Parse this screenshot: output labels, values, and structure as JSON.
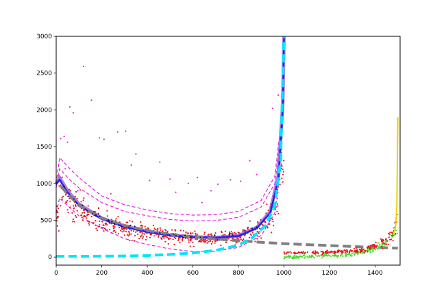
{
  "chart_data": {
    "type": "scatter",
    "title": "",
    "xlabel": "",
    "ylabel": "",
    "xlim": [
      0,
      1510
    ],
    "ylim": [
      -110,
      3000
    ],
    "grid": false,
    "x_ticks": [
      0,
      200,
      400,
      600,
      800,
      1000,
      1200,
      1400
    ],
    "y_ticks": [
      0,
      500,
      1000,
      1500,
      2000,
      2500,
      3000
    ],
    "colors": {
      "red_points": "#e41a1c",
      "magenta_points": "#e020e0",
      "magenta_band": "#e020e0",
      "fit_blue": "#2222ee",
      "fit_purple": "#9a60d8",
      "gray_trend": "#808080",
      "cyan_curve": "#00e5ff",
      "green_points": "#44dd22",
      "yellow_curve": "#f0d000",
      "dark_points": "#2a1060"
    },
    "series": [
      {
        "name": "",
        "kind": "scatter",
        "color_key": "red_points",
        "count": 600,
        "x_range": [
          0,
          1000
        ],
        "trend": [
          [
            2,
            420
          ],
          [
            15,
            950
          ],
          [
            50,
            760
          ],
          [
            100,
            620
          ],
          [
            200,
            460
          ],
          [
            300,
            380
          ],
          [
            400,
            330
          ],
          [
            500,
            290
          ],
          [
            600,
            265
          ],
          [
            700,
            250
          ],
          [
            800,
            275
          ],
          [
            900,
            400
          ],
          [
            960,
            620
          ],
          [
            990,
            1200
          ]
        ]
      },
      {
        "name": "",
        "kind": "scatter",
        "color_key": "magenta_points",
        "points": [
          [
            120,
            2590
          ],
          [
            155,
            2130
          ],
          [
            60,
            2040
          ],
          [
            75,
            1960
          ],
          [
            20,
            1610
          ],
          [
            35,
            1640
          ],
          [
            50,
            1560
          ],
          [
            190,
            1620
          ],
          [
            210,
            1600
          ],
          [
            270,
            1700
          ],
          [
            305,
            1710
          ],
          [
            330,
            1250
          ],
          [
            350,
            1400
          ],
          [
            410,
            1040
          ],
          [
            455,
            1290
          ],
          [
            500,
            1060
          ],
          [
            525,
            880
          ],
          [
            580,
            1000
          ],
          [
            620,
            1080
          ],
          [
            710,
            990
          ],
          [
            765,
            1050
          ],
          [
            810,
            1030
          ],
          [
            850,
            1310
          ],
          [
            880,
            1120
          ],
          [
            950,
            2020
          ],
          [
            975,
            2200
          ],
          [
            40,
            1200
          ],
          [
            15,
            1050
          ],
          [
            95,
            900
          ],
          [
            240,
            860
          ],
          [
            640,
            740
          ],
          [
            680,
            900
          ]
        ]
      },
      {
        "name": "",
        "kind": "line-dashed",
        "color_key": "magenta_band",
        "points": [
          [
            0,
            1000
          ],
          [
            15,
            1350
          ],
          [
            60,
            1200
          ],
          [
            100,
            1080
          ],
          [
            200,
            830
          ],
          [
            300,
            710
          ],
          [
            400,
            640
          ],
          [
            500,
            590
          ],
          [
            600,
            570
          ],
          [
            700,
            575
          ],
          [
            800,
            620
          ],
          [
            900,
            770
          ],
          [
            960,
            1100
          ],
          [
            990,
            1900
          ],
          [
            1000,
            3000
          ]
        ]
      },
      {
        "name": "",
        "kind": "line-dashed",
        "color_key": "magenta_band",
        "points": [
          [
            0,
            950
          ],
          [
            15,
            1200
          ],
          [
            60,
            1050
          ],
          [
            100,
            940
          ],
          [
            200,
            740
          ],
          [
            300,
            620
          ],
          [
            400,
            560
          ],
          [
            500,
            510
          ],
          [
            600,
            490
          ],
          [
            700,
            495
          ],
          [
            800,
            540
          ],
          [
            900,
            680
          ],
          [
            960,
            1000
          ],
          [
            990,
            1750
          ],
          [
            1000,
            3000
          ]
        ]
      },
      {
        "name": "",
        "kind": "line-dashed",
        "color_key": "magenta_band",
        "points": [
          [
            0,
            600
          ],
          [
            15,
            800
          ],
          [
            60,
            670
          ],
          [
            100,
            560
          ],
          [
            200,
            390
          ],
          [
            300,
            250
          ],
          [
            400,
            170
          ],
          [
            500,
            110
          ],
          [
            600,
            75
          ],
          [
            700,
            80
          ],
          [
            800,
            130
          ],
          [
            900,
            290
          ],
          [
            960,
            600
          ],
          [
            990,
            1300
          ],
          [
            1000,
            3000
          ]
        ]
      },
      {
        "name": "",
        "kind": "line",
        "color_key": "fit_purple",
        "points": [
          [
            0,
            1000
          ],
          [
            15,
            1080
          ],
          [
            50,
            900
          ],
          [
            100,
            720
          ],
          [
            200,
            530
          ],
          [
            300,
            420
          ],
          [
            400,
            350
          ],
          [
            500,
            300
          ],
          [
            600,
            275
          ],
          [
            700,
            265
          ],
          [
            800,
            290
          ],
          [
            880,
            400
          ],
          [
            940,
            620
          ],
          [
            975,
            1100
          ],
          [
            995,
            2100
          ],
          [
            1000,
            3000
          ]
        ]
      },
      {
        "name": "",
        "kind": "line",
        "color_key": "fit_blue",
        "points": [
          [
            0,
            990
          ],
          [
            15,
            1050
          ],
          [
            50,
            880
          ],
          [
            100,
            700
          ],
          [
            200,
            515
          ],
          [
            300,
            410
          ],
          [
            400,
            340
          ],
          [
            500,
            295
          ],
          [
            600,
            272
          ],
          [
            700,
            262
          ],
          [
            800,
            285
          ],
          [
            880,
            390
          ],
          [
            940,
            600
          ],
          [
            975,
            1050
          ],
          [
            995,
            2000
          ],
          [
            1000,
            3000
          ]
        ]
      },
      {
        "name": "",
        "kind": "line-dashed",
        "color_key": "gray_trend",
        "points": [
          [
            20,
            960
          ],
          [
            100,
            700
          ],
          [
            200,
            530
          ],
          [
            300,
            430
          ],
          [
            400,
            360
          ],
          [
            500,
            310
          ],
          [
            600,
            275
          ],
          [
            700,
            245
          ],
          [
            800,
            222
          ],
          [
            900,
            200
          ],
          [
            1000,
            182
          ],
          [
            1100,
            168
          ],
          [
            1200,
            155
          ],
          [
            1300,
            143
          ],
          [
            1400,
            130
          ],
          [
            1500,
            120
          ]
        ]
      },
      {
        "name": "",
        "kind": "line-dashed",
        "color_key": "cyan_curve",
        "points": [
          [
            0,
            10
          ],
          [
            100,
            10
          ],
          [
            200,
            12
          ],
          [
            300,
            15
          ],
          [
            400,
            20
          ],
          [
            500,
            35
          ],
          [
            600,
            55
          ],
          [
            700,
            90
          ],
          [
            800,
            160
          ],
          [
            860,
            260
          ],
          [
            920,
            430
          ],
          [
            960,
            700
          ],
          [
            985,
            1300
          ],
          [
            1000,
            3000
          ]
        ]
      },
      {
        "name": "",
        "kind": "scatter",
        "color_key": "green_points",
        "count": 220,
        "x_range": [
          1000,
          1500
        ],
        "trend": [
          [
            1000,
            0
          ],
          [
            1100,
            5
          ],
          [
            1200,
            15
          ],
          [
            1300,
            40
          ],
          [
            1350,
            70
          ],
          [
            1400,
            120
          ],
          [
            1450,
            200
          ],
          [
            1480,
            320
          ],
          [
            1500,
            500
          ]
        ]
      },
      {
        "name": "",
        "kind": "scatter",
        "color_key": "red_points",
        "count": 200,
        "x_range": [
          1000,
          1500
        ],
        "trend": [
          [
            1000,
            55
          ],
          [
            1100,
            58
          ],
          [
            1200,
            65
          ],
          [
            1300,
            80
          ],
          [
            1350,
            100
          ],
          [
            1400,
            150
          ],
          [
            1450,
            230
          ],
          [
            1480,
            330
          ],
          [
            1500,
            520
          ]
        ]
      },
      {
        "name": "",
        "kind": "line",
        "color_key": "yellow_curve",
        "points": [
          [
            1480,
            300
          ],
          [
            1490,
            400
          ],
          [
            1496,
            700
          ],
          [
            1500,
            1900
          ]
        ]
      }
    ]
  }
}
